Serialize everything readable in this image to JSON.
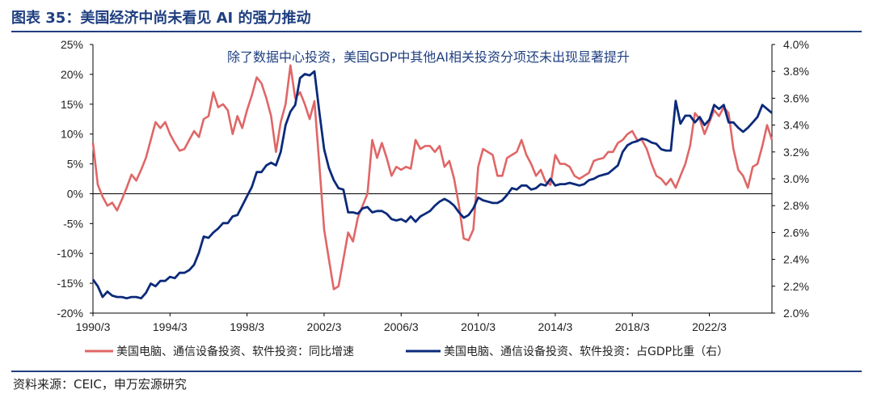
{
  "figure": {
    "title": "图表 35：美国经济中尚未看见 AI 的强力推动",
    "source": "资料来源：CEIC，申万宏源研究"
  },
  "colors": {
    "growth": "#e06666",
    "share": "#0b2a7a",
    "title": "#1f3f80",
    "axis": "#000000"
  },
  "chart_data": {
    "type": "line",
    "annotation": "除了数据中心投资，美国GDP中其他AI相关投资分项还未出现显著提升",
    "x_tick_labels": [
      "1990/3",
      "1994/3",
      "1998/3",
      "2002/3",
      "2006/3",
      "2010/3",
      "2014/3",
      "2018/3",
      "2022/3"
    ],
    "x_range": [
      1990.0,
      2025.25
    ],
    "y_left": {
      "range": [
        -20,
        25
      ],
      "ticks": [
        -20,
        -15,
        -10,
        -5,
        0,
        5,
        10,
        15,
        20,
        25
      ],
      "tick_labels": [
        "-20%",
        "-15%",
        "-10%",
        "-5%",
        "0%",
        "5%",
        "10%",
        "15%",
        "20%",
        "25%"
      ]
    },
    "y_right": {
      "range": [
        2.0,
        4.0
      ],
      "ticks": [
        2.0,
        2.2,
        2.4,
        2.6,
        2.8,
        3.0,
        3.2,
        3.4,
        3.6,
        3.8,
        4.0
      ],
      "tick_labels": [
        "2.0%",
        "2.2%",
        "2.4%",
        "2.6%",
        "2.8%",
        "3.0%",
        "3.2%",
        "3.4%",
        "3.6%",
        "3.8%",
        "4.0%"
      ]
    },
    "legend_position": "bottom",
    "series": [
      {
        "name": "美国电脑、通信设备投资、软件投资：同比增速",
        "axis": "left",
        "points": [
          [
            1990.0,
            8.5
          ],
          [
            1990.25,
            1.5
          ],
          [
            1990.5,
            -0.5
          ],
          [
            1990.75,
            -2
          ],
          [
            1991.0,
            -1.5
          ],
          [
            1991.25,
            -2.8
          ],
          [
            1991.5,
            -1
          ],
          [
            1991.75,
            1
          ],
          [
            1992.0,
            3.2
          ],
          [
            1992.25,
            2.2
          ],
          [
            1992.5,
            4
          ],
          [
            1992.75,
            6
          ],
          [
            1993.0,
            9
          ],
          [
            1993.25,
            12
          ],
          [
            1993.5,
            11
          ],
          [
            1993.75,
            12
          ],
          [
            1994.0,
            10
          ],
          [
            1994.25,
            8.5
          ],
          [
            1994.5,
            7.2
          ],
          [
            1994.75,
            7.5
          ],
          [
            1995.0,
            9
          ],
          [
            1995.25,
            10.5
          ],
          [
            1995.5,
            9.5
          ],
          [
            1995.75,
            12.5
          ],
          [
            1996.0,
            13
          ],
          [
            1996.25,
            17
          ],
          [
            1996.5,
            14.5
          ],
          [
            1996.75,
            15
          ],
          [
            1997.0,
            14
          ],
          [
            1997.25,
            10
          ],
          [
            1997.5,
            13
          ],
          [
            1997.75,
            11
          ],
          [
            1998.0,
            14
          ],
          [
            1998.25,
            16.5
          ],
          [
            1998.5,
            19.5
          ],
          [
            1998.75,
            18.5
          ],
          [
            1999.0,
            16
          ],
          [
            1999.25,
            13
          ],
          [
            1999.5,
            7
          ],
          [
            1999.75,
            12
          ],
          [
            2000.0,
            15
          ],
          [
            2000.25,
            21.5
          ],
          [
            2000.5,
            16
          ],
          [
            2000.75,
            17
          ],
          [
            2001.0,
            15
          ],
          [
            2001.25,
            12.5
          ],
          [
            2001.5,
            15.5
          ],
          [
            2001.75,
            5
          ],
          [
            2002.0,
            -6
          ],
          [
            2002.25,
            -11
          ],
          [
            2002.5,
            -16
          ],
          [
            2002.75,
            -15.5
          ],
          [
            2003.0,
            -11
          ],
          [
            2003.25,
            -6.5
          ],
          [
            2003.5,
            -8
          ],
          [
            2003.75,
            -4
          ],
          [
            2004.0,
            -2
          ],
          [
            2004.25,
            0
          ],
          [
            2004.5,
            9
          ],
          [
            2004.75,
            6
          ],
          [
            2005.0,
            8.5
          ],
          [
            2005.25,
            6
          ],
          [
            2005.5,
            3
          ],
          [
            2005.75,
            4.5
          ],
          [
            2006.0,
            4
          ],
          [
            2006.25,
            4.5
          ],
          [
            2006.5,
            4.2
          ],
          [
            2006.75,
            9
          ],
          [
            2007.0,
            7.5
          ],
          [
            2007.25,
            8
          ],
          [
            2007.5,
            8
          ],
          [
            2007.75,
            7
          ],
          [
            2008.0,
            8
          ],
          [
            2008.25,
            4.5
          ],
          [
            2008.5,
            5.5
          ],
          [
            2008.75,
            2.5
          ],
          [
            2009.0,
            -2
          ],
          [
            2009.25,
            -7.5
          ],
          [
            2009.5,
            -7.8
          ],
          [
            2009.75,
            -6
          ],
          [
            2010.0,
            4.5
          ],
          [
            2010.25,
            7.5
          ],
          [
            2010.5,
            7
          ],
          [
            2010.75,
            6.5
          ],
          [
            2011.0,
            3
          ],
          [
            2011.25,
            3
          ],
          [
            2011.5,
            6
          ],
          [
            2011.75,
            6.5
          ],
          [
            2012.0,
            7
          ],
          [
            2012.25,
            9
          ],
          [
            2012.5,
            6.5
          ],
          [
            2012.75,
            5
          ],
          [
            2013.0,
            3
          ],
          [
            2013.25,
            4
          ],
          [
            2013.5,
            2
          ],
          [
            2013.75,
            1.5
          ],
          [
            2014.0,
            6.5
          ],
          [
            2014.25,
            5
          ],
          [
            2014.5,
            5
          ],
          [
            2014.75,
            4.5
          ],
          [
            2015.0,
            3
          ],
          [
            2015.25,
            2.5
          ],
          [
            2015.5,
            3
          ],
          [
            2015.75,
            3.5
          ],
          [
            2016.0,
            5.5
          ],
          [
            2016.25,
            5.8
          ],
          [
            2016.5,
            6
          ],
          [
            2016.75,
            7
          ],
          [
            2017.0,
            7
          ],
          [
            2017.25,
            8.5
          ],
          [
            2017.5,
            9
          ],
          [
            2017.75,
            10
          ],
          [
            2018.0,
            10.5
          ],
          [
            2018.25,
            9
          ],
          [
            2018.5,
            9
          ],
          [
            2018.75,
            7.5
          ],
          [
            2019.0,
            5
          ],
          [
            2019.25,
            3
          ],
          [
            2019.5,
            2.5
          ],
          [
            2019.75,
            1.5
          ],
          [
            2020.0,
            2.5
          ],
          [
            2020.25,
            1
          ],
          [
            2020.5,
            3
          ],
          [
            2020.75,
            5
          ],
          [
            2021.0,
            8
          ],
          [
            2021.25,
            13.5
          ],
          [
            2021.5,
            12.5
          ],
          [
            2021.75,
            10
          ],
          [
            2022.0,
            12
          ],
          [
            2022.25,
            14
          ],
          [
            2022.5,
            13
          ],
          [
            2022.75,
            14.5
          ],
          [
            2023.0,
            13.5
          ],
          [
            2023.25,
            7.5
          ],
          [
            2023.5,
            4
          ],
          [
            2023.75,
            3
          ],
          [
            2024.0,
            1
          ],
          [
            2024.25,
            4.5
          ],
          [
            2024.5,
            5
          ],
          [
            2024.75,
            8
          ],
          [
            2025.0,
            11.5
          ],
          [
            2025.25,
            9
          ]
        ]
      },
      {
        "name": "美国电脑、通信设备投资、软件投资：占GDP比重（右）",
        "axis": "right",
        "points": [
          [
            1990.0,
            2.25
          ],
          [
            1990.25,
            2.2
          ],
          [
            1990.5,
            2.12
          ],
          [
            1990.75,
            2.16
          ],
          [
            1991.0,
            2.13
          ],
          [
            1991.25,
            2.12
          ],
          [
            1991.5,
            2.12
          ],
          [
            1991.75,
            2.11
          ],
          [
            1992.0,
            2.12
          ],
          [
            1992.25,
            2.12
          ],
          [
            1992.5,
            2.11
          ],
          [
            1992.75,
            2.15
          ],
          [
            1993.0,
            2.22
          ],
          [
            1993.25,
            2.2
          ],
          [
            1993.5,
            2.24
          ],
          [
            1993.75,
            2.24
          ],
          [
            1994.0,
            2.27
          ],
          [
            1994.25,
            2.26
          ],
          [
            1994.5,
            2.3
          ],
          [
            1994.75,
            2.3
          ],
          [
            1995.0,
            2.32
          ],
          [
            1995.25,
            2.36
          ],
          [
            1995.5,
            2.45
          ],
          [
            1995.75,
            2.57
          ],
          [
            1996.0,
            2.56
          ],
          [
            1996.25,
            2.6
          ],
          [
            1996.5,
            2.63
          ],
          [
            1996.75,
            2.67
          ],
          [
            1997.0,
            2.67
          ],
          [
            1997.25,
            2.72
          ],
          [
            1997.5,
            2.73
          ],
          [
            1997.75,
            2.8
          ],
          [
            1998.0,
            2.87
          ],
          [
            1998.25,
            2.94
          ],
          [
            1998.5,
            3.05
          ],
          [
            1998.75,
            3.05
          ],
          [
            1999.0,
            3.1
          ],
          [
            1999.25,
            3.12
          ],
          [
            1999.5,
            3.1
          ],
          [
            1999.75,
            3.2
          ],
          [
            2000.0,
            3.4
          ],
          [
            2000.25,
            3.5
          ],
          [
            2000.5,
            3.55
          ],
          [
            2000.75,
            3.75
          ],
          [
            2001.0,
            3.78
          ],
          [
            2001.25,
            3.77
          ],
          [
            2001.5,
            3.8
          ],
          [
            2001.75,
            3.5
          ],
          [
            2002.0,
            3.22
          ],
          [
            2002.25,
            3.08
          ],
          [
            2002.5,
            2.99
          ],
          [
            2002.75,
            2.93
          ],
          [
            2003.0,
            2.92
          ],
          [
            2003.25,
            2.75
          ],
          [
            2003.5,
            2.75
          ],
          [
            2003.75,
            2.74
          ],
          [
            2004.0,
            2.78
          ],
          [
            2004.25,
            2.79
          ],
          [
            2004.5,
            2.75
          ],
          [
            2004.75,
            2.76
          ],
          [
            2005.0,
            2.76
          ],
          [
            2005.25,
            2.74
          ],
          [
            2005.5,
            2.7
          ],
          [
            2005.75,
            2.69
          ],
          [
            2006.0,
            2.7
          ],
          [
            2006.25,
            2.68
          ],
          [
            2006.5,
            2.72
          ],
          [
            2006.75,
            2.68
          ],
          [
            2007.0,
            2.72
          ],
          [
            2007.25,
            2.74
          ],
          [
            2007.5,
            2.76
          ],
          [
            2007.75,
            2.8
          ],
          [
            2008.0,
            2.83
          ],
          [
            2008.25,
            2.85
          ],
          [
            2008.5,
            2.83
          ],
          [
            2008.75,
            2.8
          ],
          [
            2009.0,
            2.75
          ],
          [
            2009.25,
            2.71
          ],
          [
            2009.5,
            2.73
          ],
          [
            2009.75,
            2.78
          ],
          [
            2010.0,
            2.86
          ],
          [
            2010.25,
            2.84
          ],
          [
            2010.5,
            2.83
          ],
          [
            2010.75,
            2.82
          ],
          [
            2011.0,
            2.82
          ],
          [
            2011.25,
            2.84
          ],
          [
            2011.5,
            2.88
          ],
          [
            2011.75,
            2.93
          ],
          [
            2012.0,
            2.92
          ],
          [
            2012.25,
            2.95
          ],
          [
            2012.5,
            2.95
          ],
          [
            2012.75,
            2.92
          ],
          [
            2013.0,
            2.93
          ],
          [
            2013.25,
            2.96
          ],
          [
            2013.5,
            2.95
          ],
          [
            2013.75,
            3.0
          ],
          [
            2014.0,
            2.95
          ],
          [
            2014.25,
            2.96
          ],
          [
            2014.5,
            2.96
          ],
          [
            2014.75,
            2.97
          ],
          [
            2015.0,
            2.96
          ],
          [
            2015.25,
            2.95
          ],
          [
            2015.5,
            2.96
          ],
          [
            2015.75,
            2.99
          ],
          [
            2016.0,
            3.0
          ],
          [
            2016.25,
            3.02
          ],
          [
            2016.5,
            3.03
          ],
          [
            2016.75,
            3.04
          ],
          [
            2017.0,
            3.07
          ],
          [
            2017.25,
            3.1
          ],
          [
            2017.5,
            3.2
          ],
          [
            2017.75,
            3.25
          ],
          [
            2018.0,
            3.27
          ],
          [
            2018.25,
            3.28
          ],
          [
            2018.5,
            3.3
          ],
          [
            2018.75,
            3.29
          ],
          [
            2019.0,
            3.27
          ],
          [
            2019.25,
            3.26
          ],
          [
            2019.5,
            3.22
          ],
          [
            2019.75,
            3.21
          ],
          [
            2020.0,
            3.21
          ],
          [
            2020.25,
            3.58
          ],
          [
            2020.5,
            3.41
          ],
          [
            2020.75,
            3.47
          ],
          [
            2021.0,
            3.47
          ],
          [
            2021.25,
            3.42
          ],
          [
            2021.5,
            3.46
          ],
          [
            2021.75,
            3.4
          ],
          [
            2022.0,
            3.44
          ],
          [
            2022.25,
            3.55
          ],
          [
            2022.5,
            3.52
          ],
          [
            2022.75,
            3.55
          ],
          [
            2023.0,
            3.42
          ],
          [
            2023.25,
            3.42
          ],
          [
            2023.5,
            3.38
          ],
          [
            2023.75,
            3.35
          ],
          [
            2024.0,
            3.38
          ],
          [
            2024.25,
            3.42
          ],
          [
            2024.5,
            3.46
          ],
          [
            2024.75,
            3.55
          ],
          [
            2025.0,
            3.52
          ],
          [
            2025.25,
            3.49
          ]
        ]
      }
    ]
  }
}
